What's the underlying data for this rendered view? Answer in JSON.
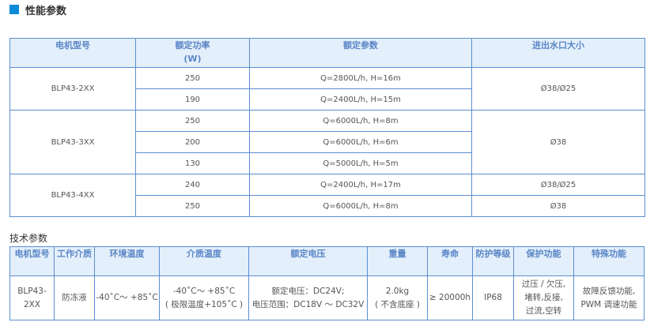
{
  "section_title": "性能参数",
  "perf_table": {
    "headers": [
      "电机型号",
      "额定功率",
      "(W)",
      "额定参数",
      "进出水口大小"
    ],
    "groups": [
      {
        "model": "BLP43-2XX",
        "rows": [
          {
            "power": "250",
            "params": "Q=2800L/h, H=16m"
          },
          {
            "power": "190",
            "params": "Q=2400L/h, H=15m"
          }
        ],
        "outlet": "Ø38/Ø25"
      },
      {
        "model": "BLP43-3XX",
        "rows": [
          {
            "power": "250",
            "params": "Q=6000L/h, H=8m"
          },
          {
            "power": "200",
            "params": "Q=6000L/h, H=6m"
          },
          {
            "power": "130",
            "params": "Q=5000L/h, H=5m"
          }
        ],
        "outlet": "Ø38"
      },
      {
        "model": "BLP43-4XX",
        "rows": [
          {
            "power": "240",
            "params": "Q=2400L/h, H=17m",
            "outlet": "Ø38/Ø25"
          },
          {
            "power": "250",
            "params": "Q=6000L/h, H=8m",
            "outlet": "Ø38"
          }
        ]
      }
    ]
  },
  "tech_title": "技术参数",
  "tech_table": {
    "headers": [
      "电机型号",
      "工作介质",
      "环境温度",
      "介质温度",
      "额定电压",
      "重量",
      "寿命",
      "防护等级",
      "保护功能",
      "特殊功能"
    ],
    "row": {
      "model": "BLP43-2XX",
      "medium": "防冻液",
      "ambient": "-40˚C～ +85˚C",
      "medium_temp": [
        "-40˚C～ +85˚C",
        "( 极限温度+105˚C )"
      ],
      "voltage": [
        "额定电压：DC24V;",
        "电压范围：DC18V ～ DC32V"
      ],
      "weight": [
        "2.0kg",
        "( 不含底座 )"
      ],
      "life": "≥ 20000h",
      "ip": "IP68",
      "protection": [
        "过压 / 欠压,",
        "堵转,反接,",
        "过流,空转"
      ],
      "special": [
        "故障反馈功能,",
        "PWM 调速功能"
      ]
    }
  }
}
